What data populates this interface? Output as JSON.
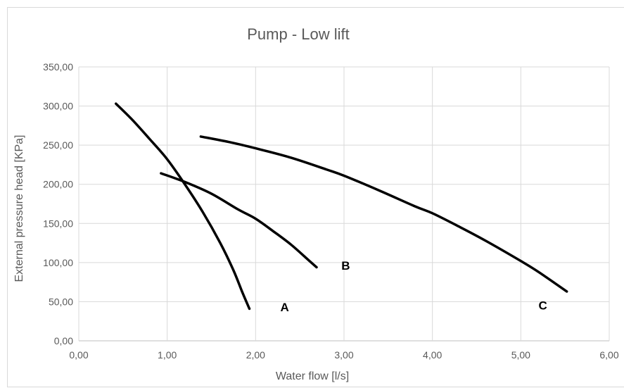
{
  "chart_data": {
    "type": "line",
    "title": "Pump - Low lift",
    "xlabel": "Water flow [l/s]",
    "ylabel": "External pressure head [KPa]",
    "xlim": [
      0,
      6
    ],
    "ylim": [
      0,
      350
    ],
    "x_ticks": [
      "0,00",
      "1,00",
      "2,00",
      "3,00",
      "4,00",
      "5,00",
      "6,00"
    ],
    "y_ticks": [
      "0,00",
      "50,00",
      "100,00",
      "150,00",
      "200,00",
      "250,00",
      "300,00",
      "350,00"
    ],
    "grid": true,
    "line_color": "#000000",
    "series": [
      {
        "name": "A",
        "points": [
          [
            0.42,
            303
          ],
          [
            0.6,
            283
          ],
          [
            0.8,
            258
          ],
          [
            1.0,
            232
          ],
          [
            1.2,
            200
          ],
          [
            1.4,
            165
          ],
          [
            1.6,
            125
          ],
          [
            1.75,
            90
          ],
          [
            1.85,
            62
          ],
          [
            1.93,
            41
          ]
        ]
      },
      {
        "name": "B",
        "points": [
          [
            0.93,
            214
          ],
          [
            1.2,
            203
          ],
          [
            1.5,
            188
          ],
          [
            1.8,
            168
          ],
          [
            2.0,
            156
          ],
          [
            2.2,
            140
          ],
          [
            2.4,
            123
          ],
          [
            2.6,
            103
          ],
          [
            2.69,
            94
          ]
        ]
      },
      {
        "name": "C",
        "points": [
          [
            1.38,
            261
          ],
          [
            1.7,
            254
          ],
          [
            2.0,
            246
          ],
          [
            2.4,
            234
          ],
          [
            2.8,
            219
          ],
          [
            3.0,
            211
          ],
          [
            3.4,
            192
          ],
          [
            3.8,
            172
          ],
          [
            4.0,
            163
          ],
          [
            4.3,
            146
          ],
          [
            4.6,
            128
          ],
          [
            5.0,
            102
          ],
          [
            5.2,
            88
          ],
          [
            5.52,
            63
          ]
        ]
      }
    ],
    "annotations": [
      {
        "text": "A",
        "x": 2.28,
        "y": 38
      },
      {
        "text": "B",
        "x": 2.97,
        "y": 91
      },
      {
        "text": "C",
        "x": 5.2,
        "y": 40
      }
    ]
  }
}
